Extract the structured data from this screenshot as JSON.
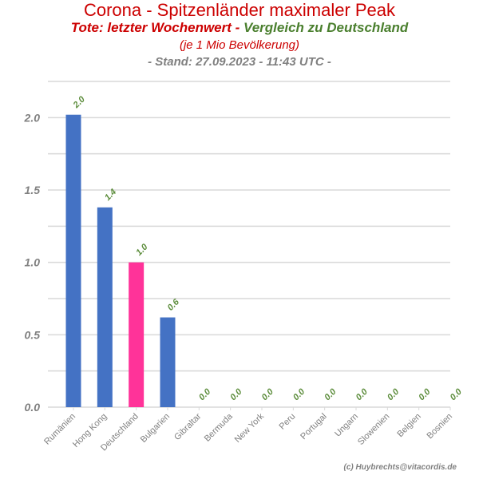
{
  "header": {
    "title": "Corona - Spitzenländer maximaler Peak",
    "subtitle_red": "Tote: letzter Wochenwert - ",
    "subtitle_green": "Vergleich zu Deutschland",
    "note": "(je 1 Mio Bevölkerung)",
    "stand": "- Stand: 27.09.2023 - 11:43 UTC -"
  },
  "credit": "(c) Huybrechts@vitacordis.de",
  "colors": {
    "bar": "#4472c4",
    "highlight": "#ff3399",
    "label": "#5b8c3a",
    "grid": "#d9d9d9",
    "tick": "#808080"
  },
  "chart_data": {
    "type": "bar",
    "title": "Corona - Spitzenländer maximaler Peak",
    "categories": [
      "Rumänien",
      "Hong Kong",
      "Deutschland",
      "Bulgarien",
      "Gibraltar",
      "Bermuda",
      "New York",
      "Peru",
      "Portugal",
      "Ungarn",
      "Slowenien",
      "Belgien",
      "Bosnien"
    ],
    "values": [
      2.02,
      1.38,
      1.0,
      0.62,
      0,
      0,
      0,
      0,
      0,
      0,
      0,
      0,
      0
    ],
    "labels": [
      "2.0",
      "1.4",
      "1.0",
      "0.6",
      "0.0",
      "0.0",
      "0.0",
      "0.0",
      "0.0",
      "0.0",
      "0.0",
      "0.0",
      "0.0"
    ],
    "highlight": "Deutschland",
    "ylim": [
      0,
      2.25
    ],
    "yticks": [
      0.0,
      0.5,
      1.0,
      1.5,
      2.0
    ],
    "ytick_labels": [
      "0.0",
      "0.5",
      "1.0",
      "1.5",
      "2.0"
    ],
    "xlabel": "",
    "ylabel": "",
    "grid": true
  }
}
